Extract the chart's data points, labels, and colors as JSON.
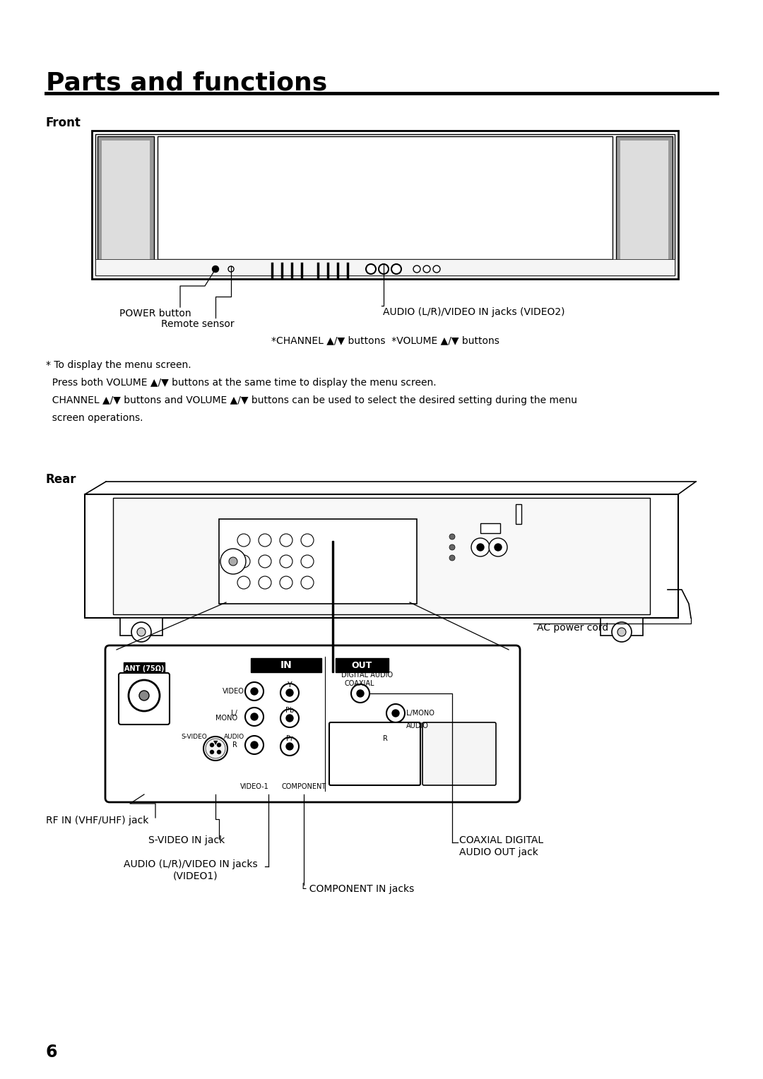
{
  "title": "Parts and functions",
  "section_front": "Front",
  "section_rear": "Rear",
  "page_number": "6",
  "bg_color": "#ffffff",
  "text_color": "#000000",
  "front_labels": {
    "power_button": "POWER button",
    "remote_sensor": "Remote sensor",
    "audio_video": "AUDIO (L/R)/VIDEO IN jacks (VIDEO2)",
    "channel_volume": "*CHANNEL ▲/▼ buttons  *VOLUME ▲/▼ buttons"
  },
  "front_note_lines": [
    "* To display the menu screen.",
    "  Press both VOLUME ▲/▼ buttons at the same time to display the menu screen.",
    "  CHANNEL ▲/▼ buttons and VOLUME ▲/▼ buttons can be used to select the desired setting during the menu",
    "  screen operations."
  ],
  "rear_labels": {
    "rf_in": "RF IN (VHF/UHF) jack",
    "s_video": "S-VIDEO IN jack",
    "audio_video1_line1": "AUDIO (L/R)/VIDEO IN jacks",
    "audio_video1_line2": "(VIDEO1)",
    "component": "└ COMPONENT IN jacks",
    "coaxial_line1": "COAXIAL DIGITAL",
    "coaxial_line2": "AUDIO OUT jack",
    "ac_power": "AC power cord"
  }
}
